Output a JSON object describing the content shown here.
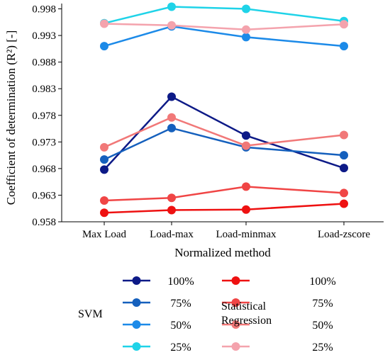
{
  "chart_data": {
    "type": "line",
    "xlabel": "Normalized method",
    "ylabel": "Coefficient of determination (R²) [-]",
    "categories": [
      "Max Load",
      "Load-max",
      "Load-minmax",
      "Load-zscore"
    ],
    "ylim": [
      0.958,
      0.999
    ],
    "yticks": [
      "0.958",
      "0.963",
      "0.968",
      "0.973",
      "0.978",
      "0.983",
      "0.988",
      "0.993",
      "0.998"
    ],
    "grid": false,
    "legend_position": "bottom",
    "groups": [
      {
        "title": "SVM",
        "series": [
          {
            "name": "100%",
            "color": "#0d1a87",
            "values": [
              0.9678,
              0.9815,
              0.9742,
              0.9681
            ]
          },
          {
            "name": "75%",
            "color": "#1560bd",
            "values": [
              0.9697,
              0.9756,
              0.972,
              0.9705
            ]
          },
          {
            "name": "50%",
            "color": "#1c8ae8",
            "values": [
              0.991,
              0.9947,
              0.9927,
              0.991
            ]
          },
          {
            "name": "25%",
            "color": "#1fd3e8",
            "values": [
              0.9953,
              0.9984,
              0.998,
              0.9957
            ]
          }
        ]
      },
      {
        "title": "Statistical Regression",
        "title_lines": [
          "Statistical",
          "Regression"
        ],
        "series": [
          {
            "name": "100%",
            "color": "#ee1111",
            "values": [
              0.9597,
              0.9602,
              0.9603,
              0.9614
            ]
          },
          {
            "name": "75%",
            "color": "#f04545",
            "values": [
              0.962,
              0.9625,
              0.9646,
              0.9634
            ]
          },
          {
            "name": "50%",
            "color": "#f17878",
            "values": [
              0.972,
              0.9776,
              0.9723,
              0.9743
            ]
          },
          {
            "name": "25%",
            "color": "#f4a3ad",
            "values": [
              0.9952,
              0.9949,
              0.9941,
              0.9951
            ]
          }
        ]
      }
    ]
  }
}
